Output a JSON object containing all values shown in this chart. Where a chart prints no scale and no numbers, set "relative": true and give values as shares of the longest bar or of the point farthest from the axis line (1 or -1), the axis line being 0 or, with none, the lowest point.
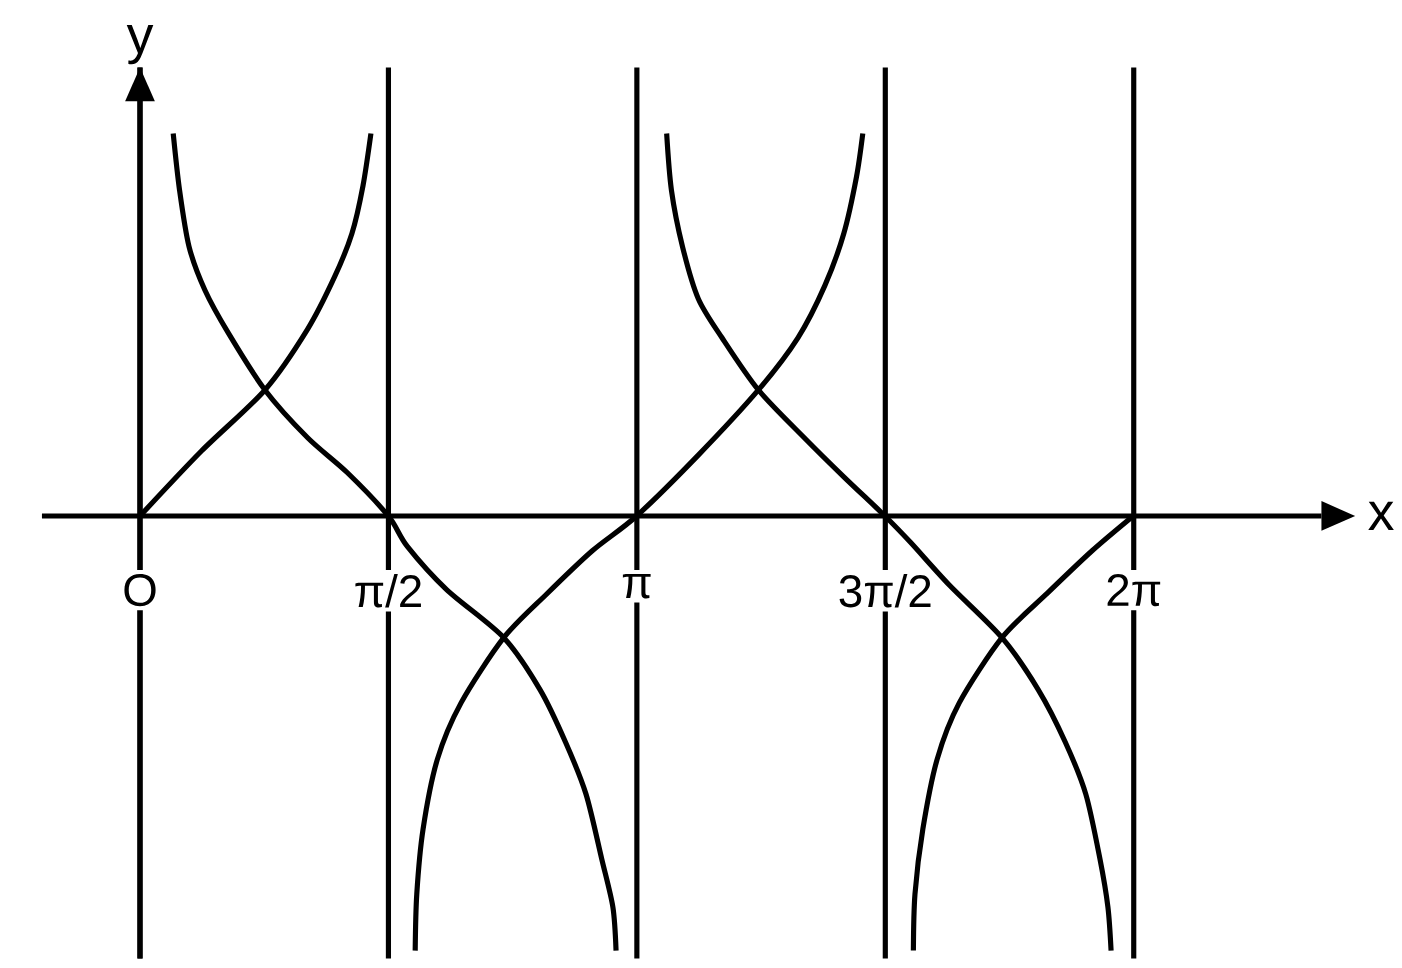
{
  "chart_data": {
    "type": "line",
    "relative": true,
    "xlabel": "x",
    "ylabel": "y",
    "xlim": [
      -0.62,
      7.47
    ],
    "grid": "x",
    "xticks": [
      {
        "value": 0,
        "label": "O"
      },
      {
        "value": 1.5708,
        "label": "π/2"
      },
      {
        "value": 3.1416,
        "label": "π"
      },
      {
        "value": 4.7124,
        "label": "3π/2"
      },
      {
        "value": 6.2832,
        "label": "2π"
      }
    ],
    "tick_labels": "x",
    "series": [
      {
        "color": "#000000",
        "x": [
          0,
          0.39,
          0.79,
          1.06,
          1.23,
          1.34,
          1.41,
          1.46,
          1.57,
          1.74,
          1.75,
          1.79,
          1.88,
          2.03,
          2.3,
          2.57,
          2.86,
          3.14,
          3.53,
          3.91,
          4.16,
          4.33,
          4.45,
          4.53,
          4.57,
          4.71,
          4.89,
          4.9,
          4.95,
          5.04,
          5.18,
          5.45,
          5.73,
          6.02,
          6.28
        ],
        "values": [
          0,
          0.15,
          0.29,
          0.43,
          0.55,
          0.65,
          0.76,
          0.88,
          null,
          -1,
          -0.87,
          -0.72,
          -0.56,
          -0.43,
          -0.28,
          -0.18,
          -0.08,
          0,
          0.14,
          0.29,
          0.41,
          0.53,
          0.65,
          0.78,
          0.88,
          null,
          -1,
          -0.87,
          -0.72,
          -0.56,
          -0.43,
          -0.28,
          -0.18,
          -0.08,
          0
        ]
      },
      {
        "color": "#000000",
        "x": [
          0.21,
          0.25,
          0.31,
          0.41,
          0.56,
          0.79,
          1.06,
          1.31,
          1.57,
          1.69,
          1.94,
          2.3,
          2.53,
          2.69,
          2.82,
          2.92,
          2.99,
          3.01,
          3.14,
          3.33,
          3.36,
          3.43,
          3.53,
          3.68,
          3.91,
          4.2,
          4.45,
          4.71,
          4.87,
          5.12,
          5.45,
          5.68,
          5.85,
          5.98,
          6.07,
          6.12,
          6.14
        ],
        "values": [
          0.88,
          0.75,
          0.62,
          0.52,
          0.42,
          0.29,
          0.18,
          0.1,
          0,
          -0.07,
          -0.17,
          -0.28,
          -0.4,
          -0.52,
          -0.64,
          -0.79,
          -0.9,
          -1,
          null,
          0.88,
          0.75,
          0.62,
          0.5,
          0.41,
          0.29,
          0.18,
          0.09,
          0,
          -0.06,
          -0.16,
          -0.28,
          -0.4,
          -0.52,
          -0.64,
          -0.79,
          -0.9,
          -1
        ]
      }
    ]
  }
}
